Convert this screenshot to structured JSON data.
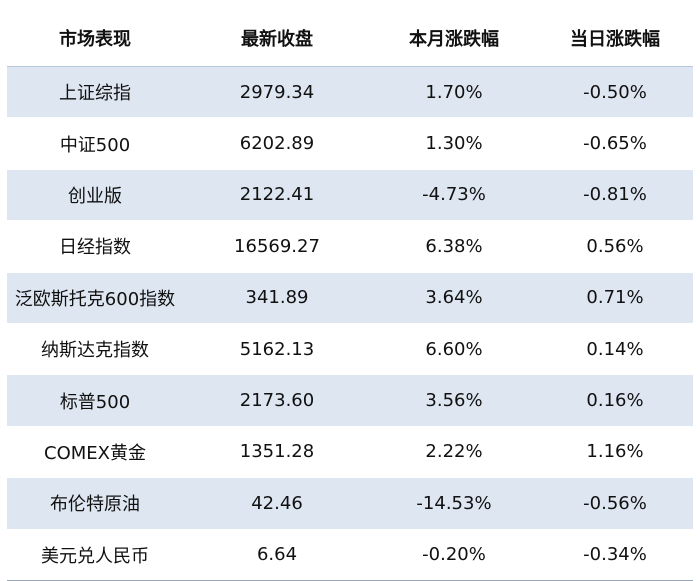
{
  "table": {
    "headers": [
      "市场表现",
      "最新收盘",
      "本月涨跌幅",
      "当日涨跌幅"
    ],
    "rows": [
      [
        "上证综指",
        "2979.34",
        "1.70%",
        "-0.50%"
      ],
      [
        "中证500",
        "6202.89",
        "1.30%",
        "-0.65%"
      ],
      [
        "创业版",
        "2122.41",
        "-4.73%",
        "-0.81%"
      ],
      [
        "日经指数",
        "16569.27",
        "6.38%",
        "0.56%"
      ],
      [
        "泛欧斯托克600指数",
        "341.89",
        "3.64%",
        "0.71%"
      ],
      [
        "纳斯达克指数",
        "5162.13",
        "6.60%",
        "0.14%"
      ],
      [
        "标普500",
        "2173.60",
        "3.56%",
        "0.16%"
      ],
      [
        "COMEX黄金",
        "1351.28",
        "2.22%",
        "1.16%"
      ],
      [
        "布伦特原油",
        "42.46",
        "-14.53%",
        "-0.56%"
      ],
      [
        "美元兑人民币",
        "6.64",
        "-0.20%",
        "-0.34%"
      ]
    ]
  },
  "colors": {
    "stripe": "#dde6f1",
    "background": "#ffffff",
    "text": "#111111"
  }
}
